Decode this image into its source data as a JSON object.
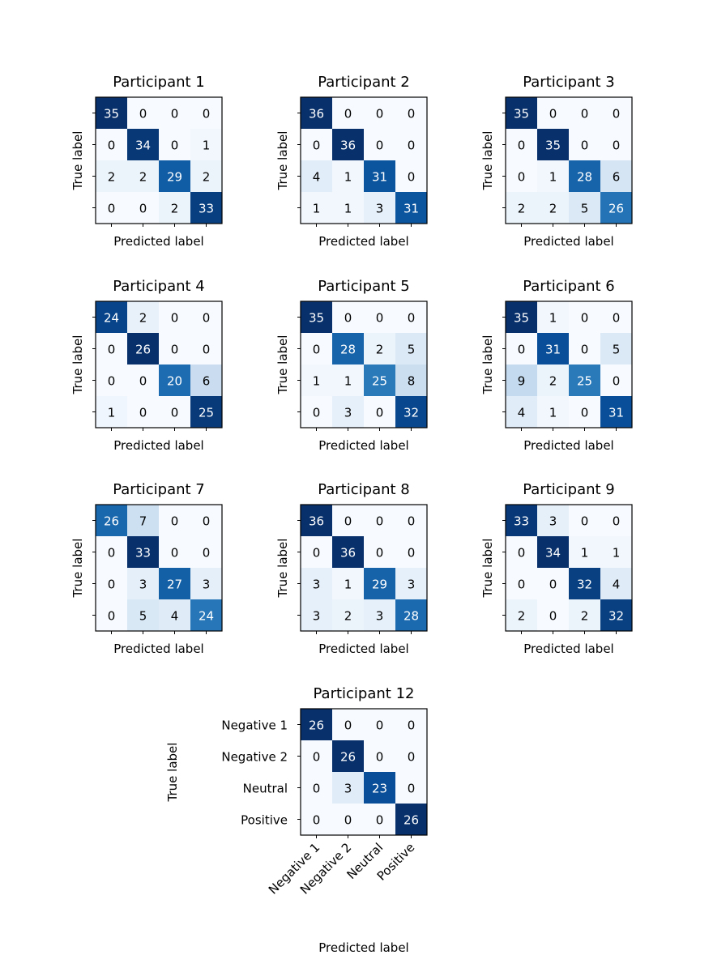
{
  "colormap": {
    "low": "#f7fbff",
    "high": "#08306b"
  },
  "axis_labels": {
    "x": "Predicted label",
    "y": "True label"
  },
  "chart_data": [
    {
      "type": "heatmap",
      "title": "Participant 1",
      "xlabel": "Predicted label",
      "ylabel": "True label",
      "matrix": [
        [
          35,
          0,
          0,
          0
        ],
        [
          0,
          34,
          0,
          1
        ],
        [
          2,
          2,
          29,
          2
        ],
        [
          0,
          0,
          2,
          33
        ]
      ]
    },
    {
      "type": "heatmap",
      "title": "Participant 2",
      "xlabel": "Predicted label",
      "ylabel": "True label",
      "matrix": [
        [
          36,
          0,
          0,
          0
        ],
        [
          0,
          36,
          0,
          0
        ],
        [
          4,
          1,
          31,
          0
        ],
        [
          1,
          1,
          3,
          31
        ]
      ]
    },
    {
      "type": "heatmap",
      "title": "Participant 3",
      "xlabel": "Predicted label",
      "ylabel": "True label",
      "matrix": [
        [
          35,
          0,
          0,
          0
        ],
        [
          0,
          35,
          0,
          0
        ],
        [
          0,
          1,
          28,
          6
        ],
        [
          2,
          2,
          5,
          26
        ]
      ]
    },
    {
      "type": "heatmap",
      "title": "Participant 4",
      "xlabel": "Predicted label",
      "ylabel": "True label",
      "matrix": [
        [
          24,
          2,
          0,
          0
        ],
        [
          0,
          26,
          0,
          0
        ],
        [
          0,
          0,
          20,
          6
        ],
        [
          1,
          0,
          0,
          25
        ]
      ]
    },
    {
      "type": "heatmap",
      "title": "Participant 5",
      "xlabel": "Predicted label",
      "ylabel": "True label",
      "matrix": [
        [
          35,
          0,
          0,
          0
        ],
        [
          0,
          28,
          2,
          5
        ],
        [
          1,
          1,
          25,
          8
        ],
        [
          0,
          3,
          0,
          32
        ]
      ]
    },
    {
      "type": "heatmap",
      "title": "Participant 6",
      "xlabel": "Predicted label",
      "ylabel": "True label",
      "matrix": [
        [
          35,
          1,
          0,
          0
        ],
        [
          0,
          31,
          0,
          5
        ],
        [
          9,
          2,
          25,
          0
        ],
        [
          4,
          1,
          0,
          31
        ]
      ]
    },
    {
      "type": "heatmap",
      "title": "Participant 7",
      "xlabel": "Predicted label",
      "ylabel": "True label",
      "matrix": [
        [
          26,
          7,
          0,
          0
        ],
        [
          0,
          33,
          0,
          0
        ],
        [
          0,
          3,
          27,
          3
        ],
        [
          0,
          5,
          4,
          24
        ]
      ]
    },
    {
      "type": "heatmap",
      "title": "Participant 8",
      "xlabel": "Predicted label",
      "ylabel": "True label",
      "matrix": [
        [
          36,
          0,
          0,
          0
        ],
        [
          0,
          36,
          0,
          0
        ],
        [
          3,
          1,
          29,
          3
        ],
        [
          3,
          2,
          3,
          28
        ]
      ]
    },
    {
      "type": "heatmap",
      "title": "Participant 9",
      "xlabel": "Predicted label",
      "ylabel": "True label",
      "matrix": [
        [
          33,
          3,
          0,
          0
        ],
        [
          0,
          34,
          1,
          1
        ],
        [
          0,
          0,
          32,
          4
        ],
        [
          2,
          0,
          2,
          32
        ]
      ]
    },
    {
      "type": "heatmap",
      "title": "Participant 12",
      "xlabel": "Predicted label",
      "ylabel": "True label",
      "x_tick_labels": [
        "Negative 1",
        "Negative 2",
        "Neutral",
        "Positive"
      ],
      "y_tick_labels": [
        "Negative 1",
        "Negative 2",
        "Neutral",
        "Positive"
      ],
      "matrix": [
        [
          26,
          0,
          0,
          0
        ],
        [
          0,
          26,
          0,
          0
        ],
        [
          0,
          3,
          23,
          0
        ],
        [
          0,
          0,
          0,
          26
        ]
      ]
    }
  ]
}
